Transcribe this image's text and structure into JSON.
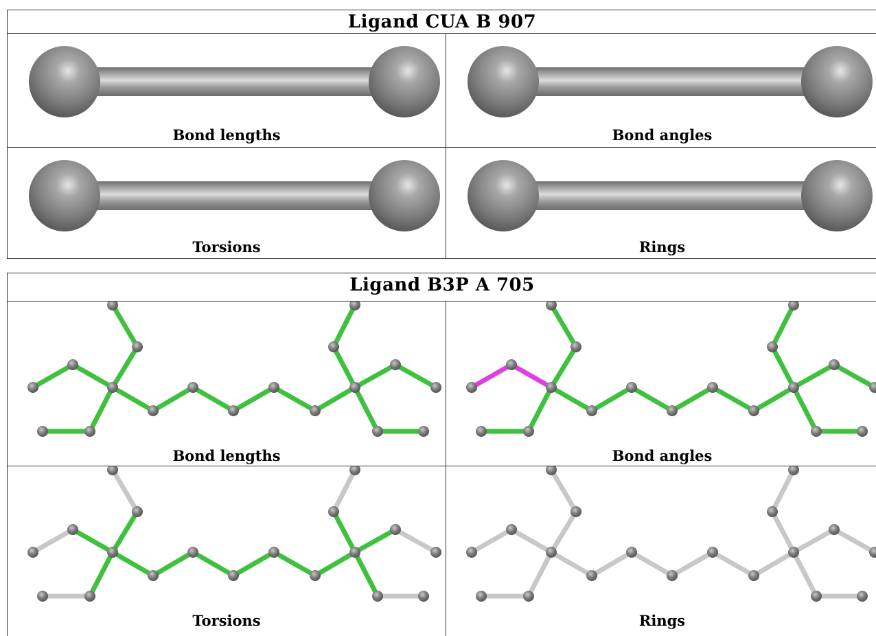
{
  "panels": [
    {
      "title": "Ligand CUA B 907",
      "cells": [
        {
          "caption": "Bond lengths",
          "style": "balls"
        },
        {
          "caption": "Bond angles",
          "style": "balls"
        },
        {
          "caption": "Torsions",
          "style": "balls"
        },
        {
          "caption": "Rings",
          "style": "balls"
        }
      ]
    },
    {
      "title": "Ligand B3P A 705",
      "cells": [
        {
          "caption": "Bond lengths",
          "style": "molecule"
        },
        {
          "caption": "Bond angles",
          "style": "molecule"
        },
        {
          "caption": "Torsions",
          "style": "molecule"
        },
        {
          "caption": "Rings",
          "style": "molecule"
        }
      ]
    }
  ],
  "colors": {
    "ok": "#3fc13f",
    "outlier": "#e040e0",
    "neutral": "#c8c8c8",
    "atom": "#7a7a7a"
  }
}
